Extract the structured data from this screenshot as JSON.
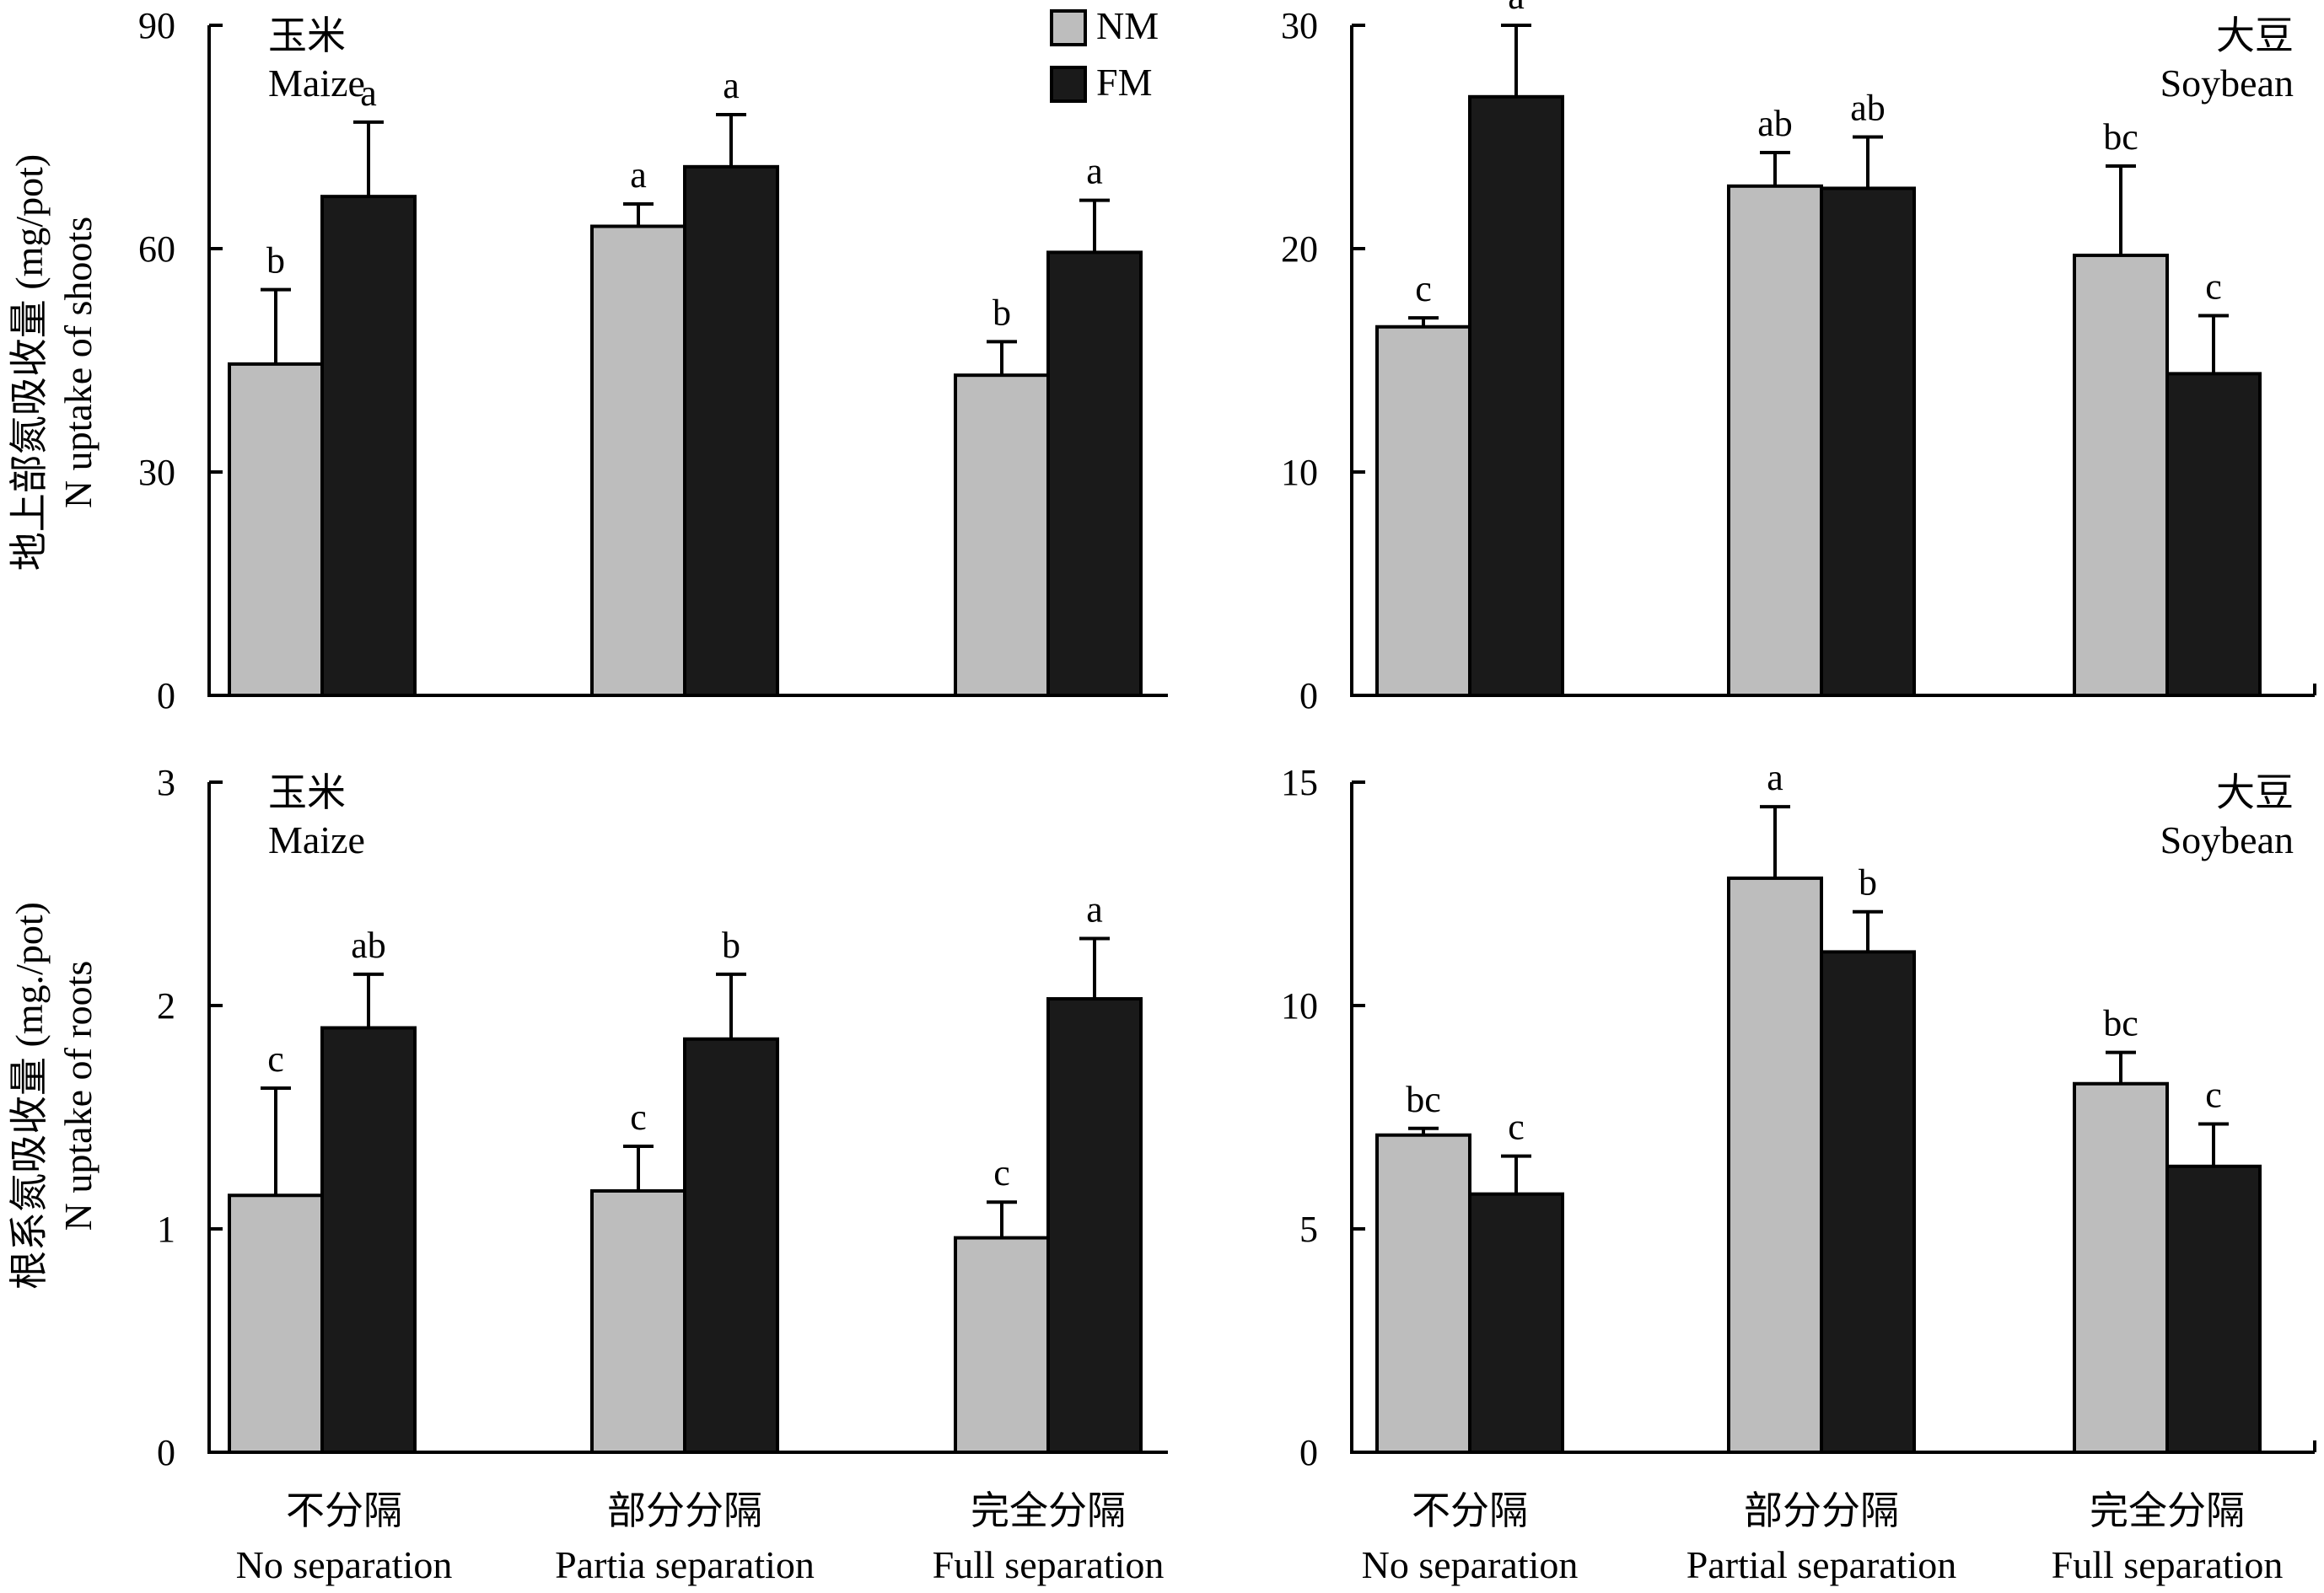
{
  "colors": {
    "NM": "#bdbdbd",
    "FM": "#1a1a1a",
    "axis": "#000000"
  },
  "legend": [
    {
      "key": "NM",
      "label": "NM"
    },
    {
      "key": "FM",
      "label": "FM"
    }
  ],
  "y_labels": {
    "top": {
      "zh": "地上部氮吸收量 (mg/pot)",
      "en": "N uptake of shoots"
    },
    "bottom": {
      "zh": "根系氮吸收量 (mg./pot)",
      "en": "N uptake of roots"
    }
  },
  "x_labels": {
    "left": [
      {
        "zh": "不分隔",
        "en": "No separation"
      },
      {
        "zh": "部分分隔",
        "en": "Partia separation"
      },
      {
        "zh": "完全分隔",
        "en": "Full separation"
      }
    ],
    "right": [
      {
        "zh": "不分隔",
        "en": "No separation"
      },
      {
        "zh": "部分分隔",
        "en": "Partial separation"
      },
      {
        "zh": "完全分隔",
        "en": "Full separation"
      }
    ]
  },
  "chart_data": [
    {
      "id": "maize-shoots",
      "type": "bar",
      "title": {
        "zh": "玉米",
        "en": "Maize"
      },
      "title_align": "left",
      "ylabel": "地上部氮吸收量 (mg/pot) N uptake of shoots",
      "ylim": [
        0,
        90
      ],
      "yticks": [
        0,
        30,
        60,
        90
      ],
      "categories": [
        "No separation",
        "Partia separation",
        "Full separation"
      ],
      "series": [
        {
          "name": "NM",
          "values": [
            44.5,
            63,
            43
          ],
          "errors": [
            10,
            3,
            4.5
          ],
          "labels": [
            "b",
            "a",
            "b"
          ]
        },
        {
          "name": "FM",
          "values": [
            67,
            71,
            59.5
          ],
          "errors": [
            10,
            7,
            7
          ],
          "labels": [
            "a",
            "a",
            "a"
          ]
        }
      ]
    },
    {
      "id": "soybean-shoots",
      "type": "bar",
      "title": {
        "zh": "大豆",
        "en": "Soybean"
      },
      "title_align": "right",
      "ylabel": "地上部氮吸收量 (mg/pot) N uptake of shoots",
      "ylim": [
        0,
        30
      ],
      "yticks": [
        0,
        10,
        20,
        30
      ],
      "categories": [
        "No separation",
        "Partial separation",
        "Full separation"
      ],
      "series": [
        {
          "name": "NM",
          "values": [
            16.5,
            22.8,
            19.7
          ],
          "errors": [
            0.4,
            1.5,
            4
          ],
          "labels": [
            "c",
            "ab",
            "bc"
          ]
        },
        {
          "name": "FM",
          "values": [
            26.8,
            22.7,
            14.4
          ],
          "errors": [
            3.2,
            2.3,
            2.6
          ],
          "labels": [
            "a",
            "ab",
            "c"
          ]
        }
      ]
    },
    {
      "id": "maize-roots",
      "type": "bar",
      "title": {
        "zh": "玉米",
        "en": "Maize"
      },
      "title_align": "left",
      "ylabel": "根系氮吸收量 (mg./pot) N uptake of roots",
      "ylim": [
        0,
        3
      ],
      "yticks": [
        0,
        1,
        2,
        3
      ],
      "categories": [
        "No separation",
        "Partia separation",
        "Full separation"
      ],
      "series": [
        {
          "name": "NM",
          "values": [
            1.15,
            1.17,
            0.96
          ],
          "errors": [
            0.48,
            0.2,
            0.16
          ],
          "labels": [
            "c",
            "c",
            "c"
          ]
        },
        {
          "name": "FM",
          "values": [
            1.9,
            1.85,
            2.03
          ],
          "errors": [
            0.24,
            0.29,
            0.27
          ],
          "labels": [
            "ab",
            "b",
            "a"
          ]
        }
      ]
    },
    {
      "id": "soybean-roots",
      "type": "bar",
      "title": {
        "zh": "大豆",
        "en": "Soybean"
      },
      "title_align": "right",
      "ylabel": "根系氮吸收量 (mg./pot) N uptake of roots",
      "ylim": [
        0,
        15
      ],
      "yticks": [
        0,
        5,
        10,
        15
      ],
      "categories": [
        "No separation",
        "Partial separation",
        "Full separation"
      ],
      "series": [
        {
          "name": "NM",
          "values": [
            7.1,
            12.85,
            8.25
          ],
          "errors": [
            0.15,
            1.6,
            0.7
          ],
          "labels": [
            "bc",
            "a",
            "bc"
          ]
        },
        {
          "name": "FM",
          "values": [
            5.78,
            11.2,
            6.4
          ],
          "errors": [
            0.85,
            0.9,
            0.95
          ],
          "labels": [
            "c",
            "b",
            "c"
          ]
        }
      ]
    }
  ]
}
